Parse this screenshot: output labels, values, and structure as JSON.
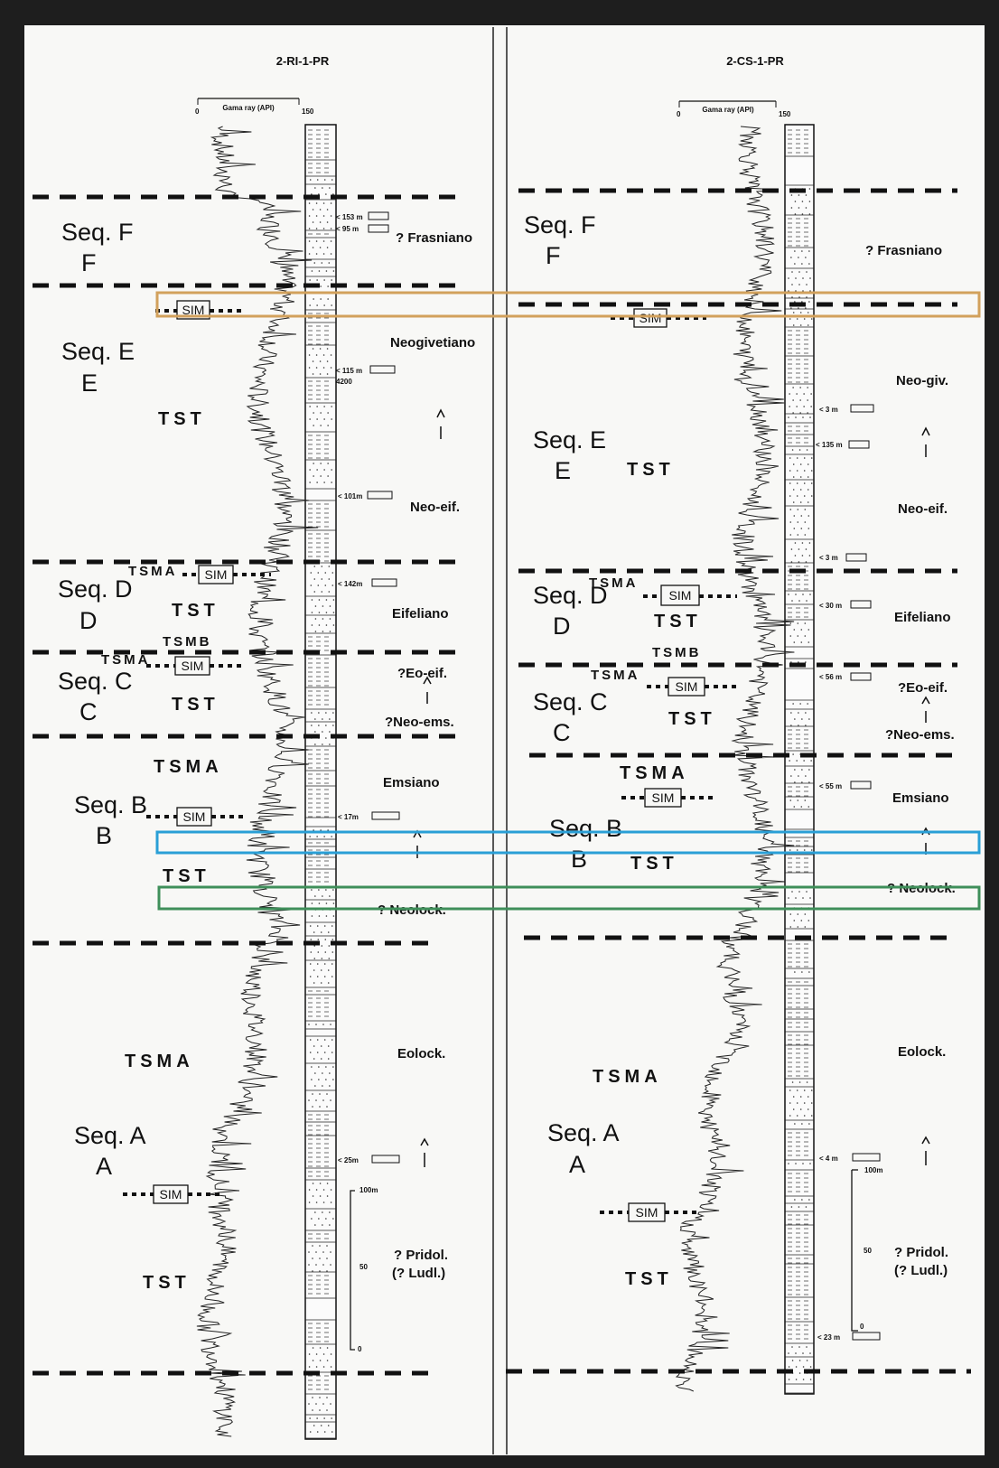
{
  "colors": {
    "frame": "#1e1e1e",
    "paper": "#f8f8f6",
    "highlight_orange": "#d2a15c",
    "highlight_blue": "#2a9fd6",
    "highlight_green": "#3f8f5a"
  },
  "wells": [
    {
      "title": "2-RI-1-PR",
      "log_scale": {
        "min": "0",
        "label": "Gama ray (API)",
        "max": "150"
      },
      "sequences": [
        "Seq. F",
        "Seq. E",
        "Seq. D",
        "Seq. C",
        "Seq. B",
        "Seq. A"
      ],
      "systems": [
        "TST",
        "TSMA",
        "TSMB",
        "TSMA",
        "TST",
        "TSMA",
        "TST",
        "TSMA",
        "TST"
      ],
      "sim_labels": [
        "SIM",
        "SIM",
        "SIM",
        "SIM",
        "SIM"
      ],
      "ages": [
        "? Frasniano",
        "Neogivetiano",
        "Neo-eif.",
        "Eifeliano",
        "?Eo-eif.",
        "?Neo-ems.",
        "Emsiano",
        "? Neolock.",
        "Eolock.",
        "? Pridol.",
        "(? Ludl.)"
      ],
      "samples": [
        "< 153 m",
        "< 95 m",
        "< 115 m",
        "< 101m",
        "< 142m",
        "< 17m",
        "< 25m"
      ],
      "depth_mark": "4200",
      "scale_ticks": [
        "100m",
        "50",
        "0"
      ]
    },
    {
      "title": "2-CS-1-PR",
      "log_scale": {
        "min": "0",
        "label": "Gama ray (API)",
        "max": "150"
      },
      "sequences": [
        "Seq. F",
        "Seq. E",
        "Seq. D",
        "Seq. C",
        "Seq. B",
        "Seq. A"
      ],
      "systems": [
        "TST",
        "TSMA",
        "TST",
        "TSMB",
        "TSMA",
        "TST",
        "TSMA",
        "TST",
        "TSMA",
        "TST"
      ],
      "sim_labels": [
        "SIM",
        "SIM",
        "SIM",
        "SIM",
        "SIM"
      ],
      "ages": [
        "? Frasniano",
        "Neo-giv.",
        "Neo-eif.",
        "Eifeliano",
        "?Eo-eif.",
        "?Neo-ems.",
        "Emsiano",
        "? Neolock.",
        "Eolock.",
        "? Pridol.",
        "(? Ludl.)"
      ],
      "samples": [
        "< 3 m",
        "< 135 m",
        "< 3 m",
        "< 30 m",
        "< 56 m",
        "< 55 m",
        "< 4 m",
        "< 23 m"
      ],
      "scale_ticks": [
        "100m",
        "50",
        "0"
      ]
    }
  ]
}
